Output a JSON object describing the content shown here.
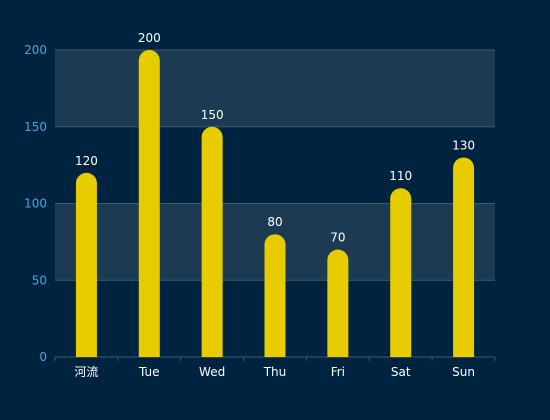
{
  "chart_data": {
    "type": "bar",
    "categories": [
      "河流",
      "Tue",
      "Wed",
      "Thu",
      "Fri",
      "Sat",
      "Sun"
    ],
    "values": [
      120,
      200,
      150,
      80,
      70,
      110,
      130
    ],
    "ylim": [
      0,
      200
    ],
    "yticks": [
      0,
      50,
      100,
      150,
      200
    ],
    "grid": "horizontal split bands",
    "legend": "none",
    "show_data_labels": true,
    "colors": {
      "background": "#002440",
      "bar": "#e6cc00",
      "band": "#1c3a52",
      "axis_line": "#3d5a73",
      "y_tick_text": "#4aa3e0",
      "x_tick_text": "#ffffff",
      "data_label_text": "#ffffff"
    }
  }
}
